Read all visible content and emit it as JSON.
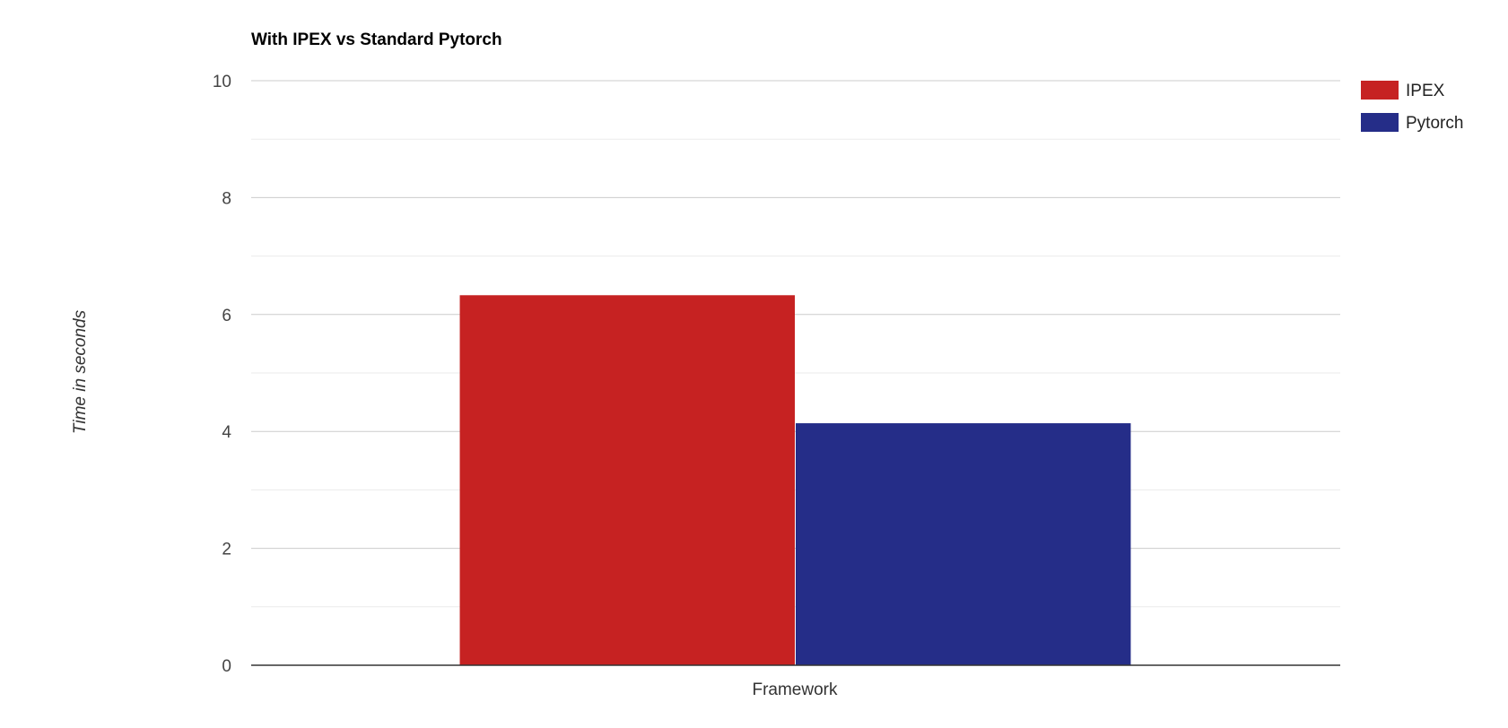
{
  "chart_data": {
    "type": "bar",
    "title": "With IPEX vs Standard Pytorch",
    "xlabel": "Framework",
    "ylabel": "Time in seconds",
    "categories": [
      ""
    ],
    "series": [
      {
        "name": "IPEX",
        "color": "#c62222",
        "values": [
          6.33
        ]
      },
      {
        "name": "Pytorch",
        "color": "#252d88",
        "values": [
          4.14
        ]
      }
    ],
    "ylim": [
      0,
      10
    ],
    "yticks": [
      0,
      2,
      4,
      6,
      8,
      10
    ],
    "grid": true,
    "legend_position": "right"
  }
}
